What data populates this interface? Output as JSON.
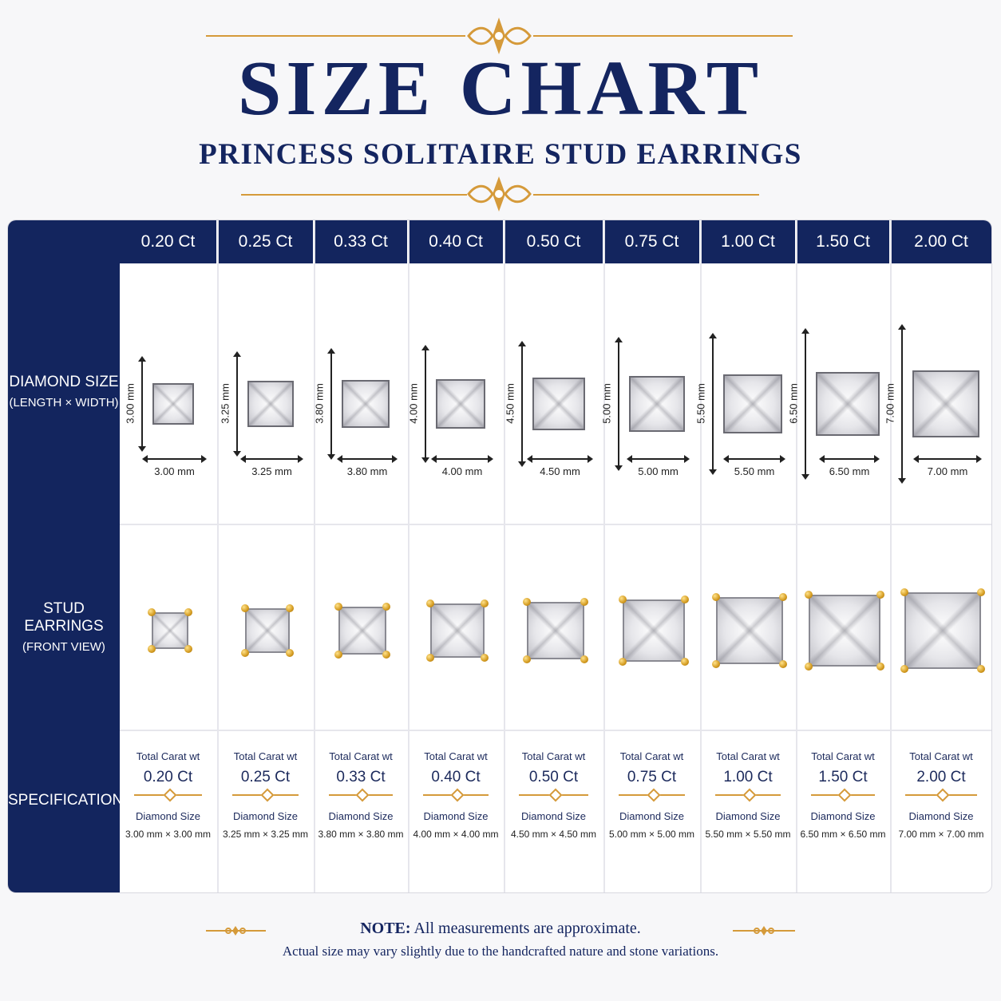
{
  "header": {
    "title": "SIZE CHART",
    "subtitle": "PRINCESS SOLITAIRE STUD EARRINGS"
  },
  "rows": {
    "diamond_size": {
      "l1": "DIAMOND SIZE",
      "l2": "(LENGTH × WIDTH)"
    },
    "stud": {
      "l1": "STUD EARRINGS",
      "l2": "(FRONT VIEW)"
    },
    "spec": {
      "l1": "SPECIFICATIONS"
    }
  },
  "columns": [
    {
      "ct": "0.20 Ct",
      "mm": "3.00 mm",
      "size": "3.00 mm × 3.00 mm"
    },
    {
      "ct": "0.25 Ct",
      "mm": "3.25 mm",
      "size": "3.25 mm × 3.25 mm"
    },
    {
      "ct": "0.33 Ct",
      "mm": "3.80 mm",
      "size": "3.80 mm × 3.80 mm"
    },
    {
      "ct": "0.40 Ct",
      "mm": "4.00 mm",
      "size": "4.00 mm × 4.00 mm"
    },
    {
      "ct": "0.50 Ct",
      "mm": "4.50 mm",
      "size": "4.50 mm × 4.50 mm"
    },
    {
      "ct": "0.75 Ct",
      "mm": "5.00 mm",
      "size": "5.00 mm × 5.00 mm"
    },
    {
      "ct": "1.00 Ct",
      "mm": "5.50 mm",
      "size": "5.50 mm × 5.50 mm"
    },
    {
      "ct": "1.50 Ct",
      "mm": "6.50 mm",
      "size": "6.50 mm × 6.50 mm"
    },
    {
      "ct": "2.00 Ct",
      "mm": "7.00 mm",
      "size": "7.00 mm × 7.00 mm"
    }
  ],
  "spec_labels": {
    "total": "Total Carat wt",
    "diamond": "Diamond Size"
  },
  "note": {
    "label": "NOTE:",
    "line1": "All measurements are approximate.",
    "line2": "Actual size may vary slightly due to the handcrafted nature and stone variations."
  },
  "colors": {
    "navy": "#13255e",
    "gold": "#d59a3a"
  }
}
